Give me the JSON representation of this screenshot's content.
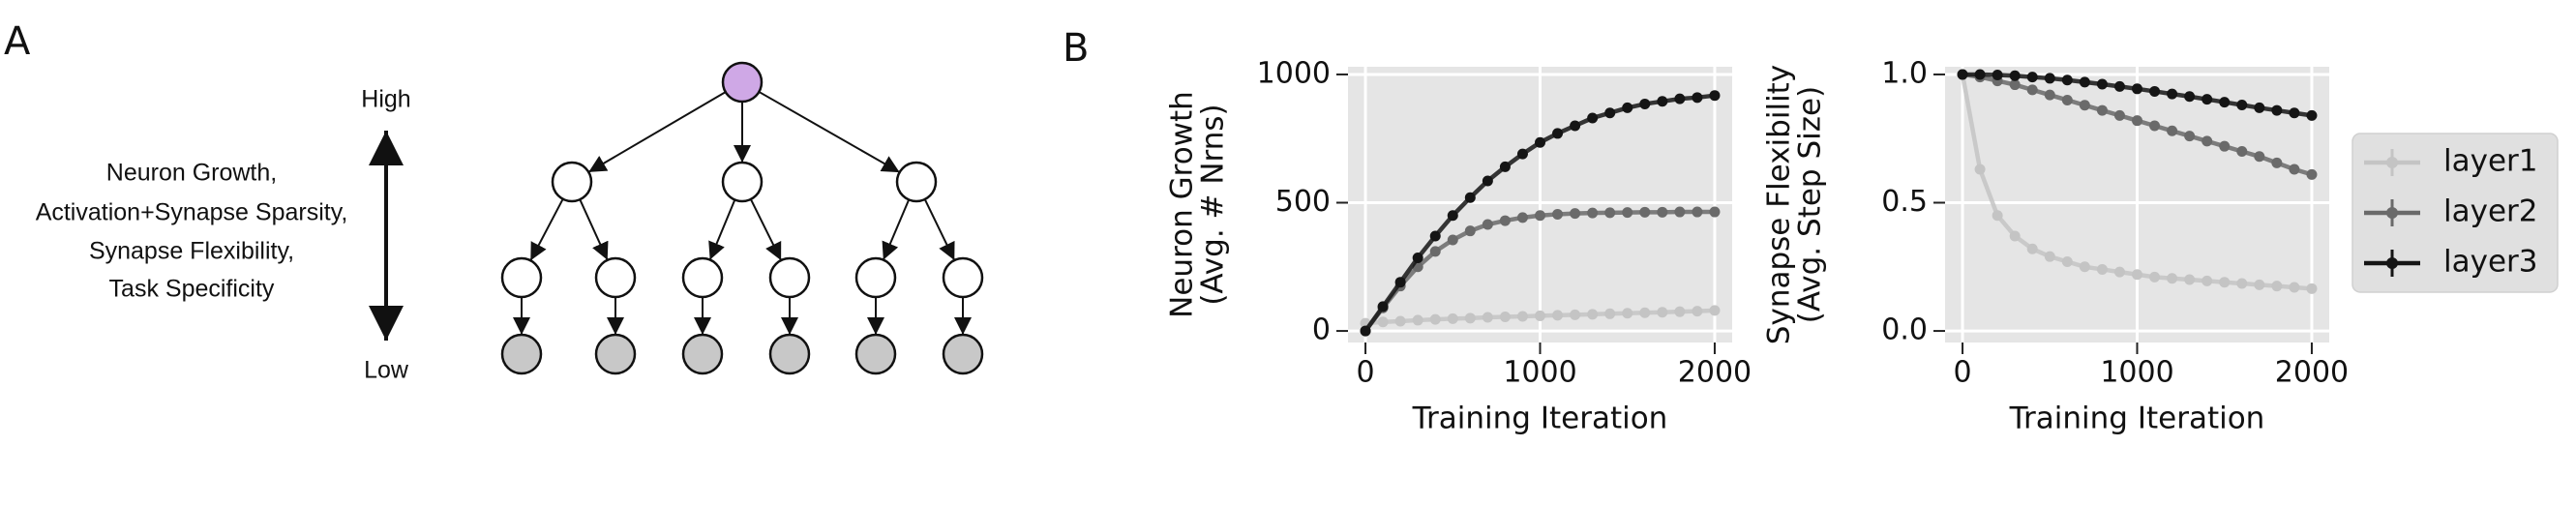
{
  "panel_labels": [
    "A",
    "B"
  ],
  "diagram": {
    "axis_high": "High",
    "axis_low": "Low",
    "description": [
      "Neuron Growth,",
      "Activation+Synapse Sparsity,",
      "Synapse Flexibility,",
      "Task Specificity"
    ]
  },
  "chart_data": [
    {
      "type": "line",
      "xlabel": "Training Iteration",
      "ylabel": [
        "Neuron Growth",
        "(Avg. # Nrns)"
      ],
      "xlim": [
        -100,
        2100
      ],
      "ylim": [
        -45,
        1030
      ],
      "xticks": [
        0,
        1000,
        2000
      ],
      "yticks": [
        0,
        500,
        1000
      ],
      "grid": true,
      "x": [
        0,
        100,
        200,
        300,
        400,
        500,
        600,
        700,
        800,
        900,
        1000,
        1100,
        1200,
        1300,
        1400,
        1500,
        1600,
        1700,
        1800,
        1900,
        2000
      ],
      "series": [
        {
          "color": "#c4c4c4",
          "values": [
            30,
            35,
            38,
            42,
            45,
            48,
            50,
            53,
            55,
            57,
            59,
            61,
            63,
            65,
            67,
            69,
            71,
            73,
            75,
            77,
            80
          ]
        },
        {
          "color": "#6a6a6a",
          "values": [
            0,
            90,
            175,
            250,
            310,
            355,
            390,
            415,
            430,
            442,
            450,
            455,
            458,
            460,
            461,
            462,
            463,
            463,
            464,
            464,
            464
          ]
        },
        {
          "color": "#151515",
          "values": [
            0,
            95,
            190,
            285,
            370,
            450,
            520,
            585,
            640,
            690,
            735,
            770,
            800,
            830,
            850,
            870,
            885,
            895,
            905,
            910,
            918
          ]
        }
      ]
    },
    {
      "type": "line",
      "xlabel": "Training Iteration",
      "ylabel": [
        "Synapse Flexibility",
        "(Avg. Step Size)"
      ],
      "xlim": [
        -100,
        2100
      ],
      "ylim": [
        -0.045,
        1.03
      ],
      "xticks": [
        0,
        1000,
        2000
      ],
      "yticks": [
        {
          "value": 0,
          "label": "0.0"
        },
        0.5,
        {
          "value": 1,
          "label": "1.0"
        }
      ],
      "grid": true,
      "legend": "right",
      "x": [
        0,
        100,
        200,
        300,
        400,
        500,
        600,
        700,
        800,
        900,
        1000,
        1100,
        1200,
        1300,
        1400,
        1500,
        1600,
        1700,
        1800,
        1900,
        2000
      ],
      "series": [
        {
          "name": "layer1",
          "color": "#c4c4c4",
          "values": [
            1.0,
            0.63,
            0.45,
            0.37,
            0.32,
            0.29,
            0.27,
            0.25,
            0.24,
            0.23,
            0.22,
            0.21,
            0.205,
            0.2,
            0.195,
            0.19,
            0.185,
            0.18,
            0.175,
            0.17,
            0.165
          ]
        },
        {
          "name": "layer2",
          "color": "#6a6a6a",
          "values": [
            1.0,
            0.99,
            0.975,
            0.96,
            0.94,
            0.92,
            0.9,
            0.88,
            0.86,
            0.84,
            0.82,
            0.8,
            0.78,
            0.76,
            0.74,
            0.72,
            0.7,
            0.68,
            0.655,
            0.63,
            0.61
          ]
        },
        {
          "name": "layer3",
          "color": "#151515",
          "values": [
            1.0,
            1.0,
            0.998,
            0.995,
            0.99,
            0.985,
            0.978,
            0.97,
            0.962,
            0.953,
            0.944,
            0.934,
            0.924,
            0.914,
            0.903,
            0.892,
            0.881,
            0.87,
            0.86,
            0.85,
            0.84
          ]
        }
      ]
    }
  ]
}
